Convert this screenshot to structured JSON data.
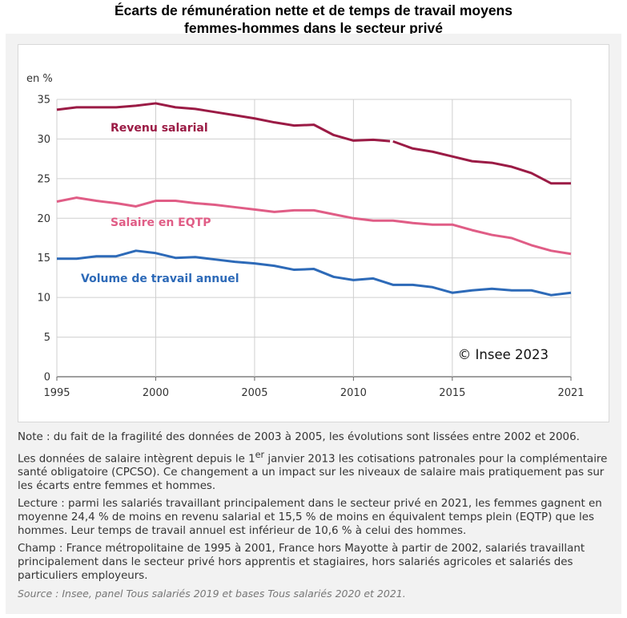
{
  "title_line1": "Écarts de rémunération nette et de temps de travail moyens",
  "title_line2": "femmes-hommes dans le secteur privé",
  "chart_data": {
    "type": "line",
    "ylabel": "en %",
    "ylim": [
      0,
      35
    ],
    "yticks": [
      "0",
      "5",
      "10",
      "15",
      "20",
      "25",
      "30",
      "35"
    ],
    "xlim": [
      1995,
      2021
    ],
    "xticks": [
      "1995",
      "2000",
      "2005",
      "2010",
      "2015",
      "2021"
    ],
    "grid": true,
    "x": [
      1995,
      1996,
      1997,
      1998,
      1999,
      2000,
      2001,
      2002,
      2003,
      2004,
      2005,
      2006,
      2007,
      2008,
      2009,
      2010,
      2011,
      2012,
      2013,
      2014,
      2015,
      2016,
      2017,
      2018,
      2019,
      2020,
      2021
    ],
    "series": [
      {
        "name": "Revenu salarial",
        "color": "#9b1b45",
        "break_after_index": 16,
        "values": [
          33.7,
          34.0,
          34.0,
          34.0,
          34.2,
          34.5,
          34.0,
          33.8,
          33.4,
          33.0,
          32.6,
          32.1,
          31.7,
          31.8,
          30.5,
          29.8,
          29.9,
          29.7,
          28.8,
          28.4,
          27.8,
          27.2,
          27.0,
          26.5,
          25.7,
          24.4,
          24.4
        ]
      },
      {
        "name": "Salaire en EQTP",
        "color": "#e05d86",
        "values": [
          22.1,
          22.6,
          22.2,
          21.9,
          21.5,
          22.2,
          22.2,
          21.9,
          21.7,
          21.4,
          21.1,
          20.8,
          21.0,
          21.0,
          20.5,
          20.0,
          19.7,
          19.7,
          19.4,
          19.2,
          19.2,
          18.5,
          17.9,
          17.5,
          16.6,
          15.9,
          15.5
        ]
      },
      {
        "name": "Volume de travail annuel",
        "color": "#2d6ab8",
        "values": [
          14.9,
          14.9,
          15.2,
          15.2,
          15.9,
          15.6,
          15.0,
          15.1,
          14.8,
          14.5,
          14.3,
          14.0,
          13.5,
          13.6,
          12.6,
          12.2,
          12.4,
          11.6,
          11.6,
          11.3,
          10.6,
          10.9,
          11.1,
          10.9,
          10.9,
          10.3,
          10.6
        ]
      }
    ],
    "watermark": "© Insee 2023"
  },
  "notes": {
    "note": "Note : du fait de la fragilité des données de 2003 à 2005, les évolutions sont lissées entre 2002 et 2006.",
    "data_change_pre": "Les données de salaire intègrent depuis le 1",
    "data_change_sup": "er",
    "data_change_post": " janvier 2013 les cotisations patronales pour la complémentaire santé obligatoire (CPCSO). Ce changement a un impact sur les niveaux de salaire mais pratiquement pas sur les écarts entre femmes et hommes.",
    "lecture": "Lecture : parmi les salariés travaillant principalement dans le secteur privé en 2021, les femmes gagnent en moyenne 24,4 % de moins en revenu salarial et 15,5 % de moins en équivalent temps plein (EQTP) que les hommes. Leur temps de travail annuel est inférieur de 10,6 % à celui des hommes.",
    "champ": "Champ : France métropolitaine de 1995 à 2001, France hors Mayotte à partir de 2002, salariés travaillant principalement dans le secteur privé hors apprentis et stagiaires, hors salariés agricoles et salariés des particuliers employeurs.",
    "source": "Source : Insee, panel Tous salariés 2019 et bases Tous salariés 2020 et 2021."
  }
}
